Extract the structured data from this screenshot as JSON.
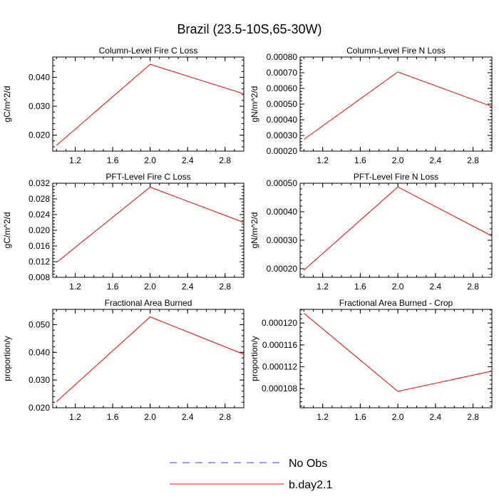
{
  "title": "Brazil (23.5-10S,65-30W)",
  "chart_data": [
    {
      "type": "line",
      "title": "Column-Level Fire C Loss",
      "ylabel": "gC/m^2/d",
      "xlim": [
        0.96,
        3.0
      ],
      "ylim": [
        0.0145,
        0.047
      ],
      "xticks": [
        1.2,
        1.6,
        2.0,
        2.4,
        2.8
      ],
      "xtick_labels": [
        "1.2",
        "1.6",
        "2.0",
        "2.4",
        "2.8"
      ],
      "yticks": [
        0.02,
        0.03,
        0.04
      ],
      "ytick_labels": [
        "0.020",
        "0.030",
        "0.040"
      ],
      "series": [
        {
          "name": "b.day2.1",
          "color": "#ff0000",
          "x": [
            1.0,
            2.0,
            3.0
          ],
          "y": [
            0.0165,
            0.0445,
            0.0343
          ]
        }
      ]
    },
    {
      "type": "line",
      "title": "Column-Level Fire N Loss",
      "ylabel": "gN/m^2/d",
      "xlim": [
        0.96,
        3.0
      ],
      "ylim": [
        0.0002,
        0.0008
      ],
      "xticks": [
        1.2,
        1.6,
        2.0,
        2.4,
        2.8
      ],
      "xtick_labels": [
        "1.2",
        "1.6",
        "2.0",
        "2.4",
        "2.8"
      ],
      "yticks": [
        0.0002,
        0.0003,
        0.0004,
        0.0005,
        0.0006,
        0.0007,
        0.0008
      ],
      "ytick_labels": [
        "0.00020",
        "0.00030",
        "0.00040",
        "0.00050",
        "0.00060",
        "0.00070",
        "0.00080"
      ],
      "series": [
        {
          "name": "b.day2.1",
          "color": "#ff0000",
          "x": [
            1.0,
            2.0,
            3.0
          ],
          "y": [
            0.000275,
            0.000705,
            0.000485
          ]
        }
      ]
    },
    {
      "type": "line",
      "title": "PFT-Level Fire C Loss",
      "ylabel": "gC/m^2/d",
      "xlim": [
        0.96,
        3.0
      ],
      "ylim": [
        0.008,
        0.032
      ],
      "xticks": [
        1.2,
        1.6,
        2.0,
        2.4,
        2.8
      ],
      "xtick_labels": [
        "1.2",
        "1.6",
        "2.0",
        "2.4",
        "2.8"
      ],
      "yticks": [
        0.008,
        0.012,
        0.016,
        0.02,
        0.024,
        0.028,
        0.032
      ],
      "ytick_labels": [
        "0.008",
        "0.012",
        "0.016",
        "0.020",
        "0.024",
        "0.028",
        "0.032"
      ],
      "series": [
        {
          "name": "b.day2.1",
          "color": "#ff0000",
          "x": [
            1.0,
            2.0,
            3.0
          ],
          "y": [
            0.0118,
            0.031,
            0.022
          ]
        }
      ]
    },
    {
      "type": "line",
      "title": "PFT-Level Fire N Loss",
      "ylabel": "gN/m^2/d",
      "xlim": [
        0.96,
        3.0
      ],
      "ylim": [
        0.00017,
        0.0005
      ],
      "xticks": [
        1.2,
        1.6,
        2.0,
        2.4,
        2.8
      ],
      "xtick_labels": [
        "1.2",
        "1.6",
        "2.0",
        "2.4",
        "2.8"
      ],
      "yticks": [
        0.0002,
        0.0003,
        0.0004,
        0.0005
      ],
      "ytick_labels": [
        "0.00020",
        "0.00030",
        "0.00040",
        "0.00050"
      ],
      "series": [
        {
          "name": "b.day2.1",
          "color": "#ff0000",
          "x": [
            1.0,
            2.0,
            3.0
          ],
          "y": [
            0.000195,
            0.000487,
            0.000315
          ]
        }
      ]
    },
    {
      "type": "line",
      "title": "Fractional Area Burned",
      "ylabel": "proportion/y",
      "xlim": [
        0.96,
        3.0
      ],
      "ylim": [
        0.02,
        0.0555
      ],
      "xticks": [
        1.2,
        1.6,
        2.0,
        2.4,
        2.8
      ],
      "xtick_labels": [
        "1.2",
        "1.6",
        "2.0",
        "2.4",
        "2.8"
      ],
      "yticks": [
        0.02,
        0.03,
        0.04,
        0.05
      ],
      "ytick_labels": [
        "0.020",
        "0.030",
        "0.040",
        "0.050"
      ],
      "series": [
        {
          "name": "b.day2.1",
          "color": "#ff0000",
          "x": [
            1.0,
            2.0,
            3.0
          ],
          "y": [
            0.0222,
            0.0528,
            0.0393
          ]
        }
      ]
    },
    {
      "type": "line",
      "title": "Fractional Area Burned - Crop",
      "ylabel": "proportion/y",
      "xlim": [
        0.96,
        3.0
      ],
      "ylim": [
        0.0001045,
        0.0001225
      ],
      "xticks": [
        1.2,
        1.6,
        2.0,
        2.4,
        2.8
      ],
      "xtick_labels": [
        "1.2",
        "1.6",
        "2.0",
        "2.4",
        "2.8"
      ],
      "yticks": [
        0.000108,
        0.000112,
        0.000116,
        0.00012
      ],
      "ytick_labels": [
        "0.000108",
        "0.000112",
        "0.000116",
        "0.000120"
      ],
      "series": [
        {
          "name": "b.day2.1",
          "color": "#ff0000",
          "x": [
            1.0,
            2.0,
            3.0
          ],
          "y": [
            0.0001218,
            0.0001075,
            0.0001112
          ]
        }
      ]
    }
  ],
  "legend": {
    "placement": "bottom-center",
    "entries": [
      {
        "label": "No Obs",
        "color": "#4040c0",
        "style": "dashed"
      },
      {
        "label": "b.day2.1",
        "color": "#ff0000",
        "style": "solid"
      }
    ]
  }
}
